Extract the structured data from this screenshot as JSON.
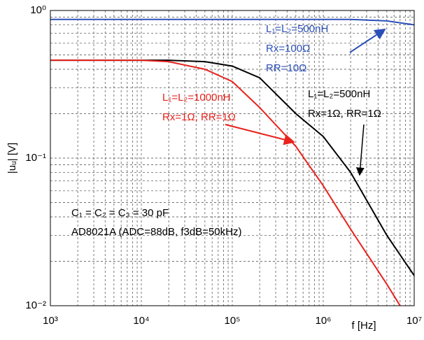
{
  "chart_data": {
    "type": "line",
    "x_label": "f [Hz]",
    "y_label": "|uᵤ| [V]",
    "x": [
      1000,
      3000,
      10000,
      20000,
      50000,
      100000,
      200000,
      500000,
      1000000,
      2000000,
      5000000,
      10000000
    ],
    "series": [
      {
        "name": "blue",
        "color": "#2b4fb8",
        "values": [
          0.87,
          0.87,
          0.87,
          0.87,
          0.87,
          0.87,
          0.87,
          0.87,
          0.87,
          0.87,
          0.85,
          0.8
        ]
      },
      {
        "name": "black",
        "color": "#000000",
        "values": [
          0.46,
          0.46,
          0.46,
          0.46,
          0.45,
          0.42,
          0.35,
          0.2,
          0.14,
          0.08,
          0.03,
          0.016
        ]
      },
      {
        "name": "red",
        "color": "#e8231d",
        "values": [
          0.46,
          0.46,
          0.46,
          0.45,
          0.4,
          0.33,
          0.22,
          0.12,
          0.065,
          0.033,
          0.014,
          0.007
        ]
      }
    ],
    "log_x": true,
    "log_y": true,
    "grid": true,
    "xlim": [
      1000,
      10000000
    ],
    "ylim": [
      0.01,
      1
    ],
    "xticks": [
      {
        "value": 1000,
        "label": "10³"
      },
      {
        "value": 10000,
        "label": "10⁴"
      },
      {
        "value": 100000,
        "label": "10⁵"
      },
      {
        "value": 1000000,
        "label": "10⁶"
      },
      {
        "value": 10000000,
        "label": "10⁷"
      }
    ],
    "yticks": [
      {
        "value": 0.01,
        "label": "10⁻²"
      },
      {
        "value": 0.1,
        "label": "10⁻¹"
      },
      {
        "value": 1,
        "label": "10⁰"
      }
    ],
    "annotations": {
      "blue": [
        "L₁=L₂=500nH",
        "Rx=100Ω",
        "RR=10Ω"
      ],
      "red": [
        "L₁=L₂=1000nH",
        "Rx=1Ω, RR=1Ω"
      ],
      "black": [
        "L₁=L₂=500nH",
        "Rx=1Ω, RR=1Ω"
      ],
      "notes": [
        "C₁ = C₂ = C₃ = 30 pF",
        "AD8021A (ADC=88dB, f3dB=50kHz)"
      ]
    }
  }
}
